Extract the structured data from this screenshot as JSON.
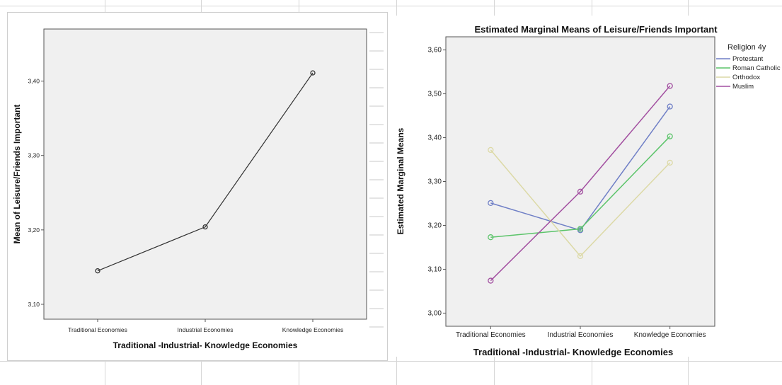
{
  "chart_data": [
    {
      "type": "line",
      "title": "",
      "xlabel": "Traditional -Industrial- Knowledge Economies",
      "ylabel": "Mean of Leisure/Friends Important",
      "categories": [
        "Traditional Economies",
        "Industrial Economies",
        "Knowledge Economies"
      ],
      "y_ticks": [
        "3,10",
        "3,20",
        "3,30",
        "3,40"
      ],
      "ylim": [
        3.08,
        3.47
      ],
      "grid": false,
      "series": [
        {
          "name": "",
          "color": "#333333",
          "values": [
            3.145,
            3.204,
            3.411
          ]
        }
      ]
    },
    {
      "type": "line",
      "title": "Estimated Marginal Means of Leisure/Friends Important",
      "xlabel": "Traditional -Industrial- Knowledge Economies",
      "ylabel": "Estimated Marginal Means",
      "categories": [
        "Traditional Economies",
        "Industrial Economies",
        "Knowledge Economies"
      ],
      "y_ticks": [
        "3,00",
        "3,10",
        "3,20",
        "3,30",
        "3,40",
        "3,50",
        "3,60"
      ],
      "ylim": [
        2.97,
        3.63
      ],
      "grid": false,
      "legend": {
        "title": "Religion 4y",
        "position": "right"
      },
      "series": [
        {
          "name": "Protestant",
          "color": "#6f7fc6",
          "values": [
            3.251,
            3.189,
            3.471
          ]
        },
        {
          "name": "Roman Catholic",
          "color": "#5cc46a",
          "values": [
            3.173,
            3.192,
            3.403
          ]
        },
        {
          "name": "Orthodox",
          "color": "#dcd9a6",
          "values": [
            3.372,
            3.13,
            3.343
          ]
        },
        {
          "name": "Muslim",
          "color": "#a24fa0",
          "values": [
            3.074,
            3.277,
            3.518
          ]
        }
      ]
    }
  ]
}
